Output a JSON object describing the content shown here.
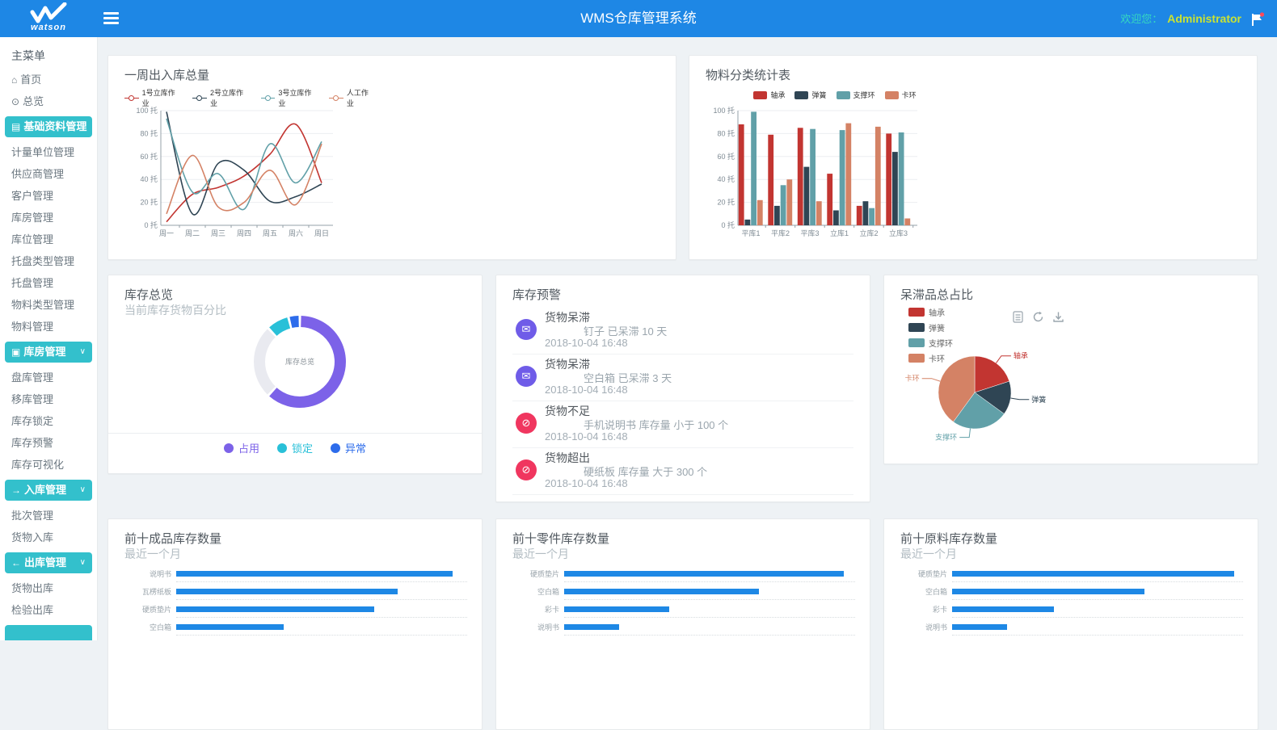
{
  "header": {
    "logo_text": "watson",
    "title": "WMS仓库管理系统",
    "welcome_label": "欢迎您：",
    "username": "Administrator"
  },
  "sidebar": {
    "menu_label": "主菜单",
    "items": [
      {
        "label": "首页",
        "icon": "home"
      },
      {
        "label": "总览",
        "icon": "overview"
      },
      {
        "label": "基础资料管理",
        "icon": "folder",
        "active": true
      },
      {
        "label": "计量单位管理"
      },
      {
        "label": "供应商管理"
      },
      {
        "label": "客户管理"
      },
      {
        "label": "库房管理"
      },
      {
        "label": "库位管理"
      },
      {
        "label": "托盘类型管理"
      },
      {
        "label": "托盘管理"
      },
      {
        "label": "物料类型管理"
      },
      {
        "label": "物料管理"
      },
      {
        "label": "库房管理",
        "icon": "warehouse",
        "active": true,
        "chevron": true
      },
      {
        "label": "盘库管理"
      },
      {
        "label": "移库管理"
      },
      {
        "label": "库存锁定"
      },
      {
        "label": "库存预警"
      },
      {
        "label": "库存可视化"
      },
      {
        "label": "入库管理",
        "icon": "arrow-right",
        "active": true,
        "chevron": true
      },
      {
        "label": "批次管理"
      },
      {
        "label": "货物入库"
      },
      {
        "label": "出库管理",
        "icon": "arrow-left",
        "active": true,
        "chevron": true
      },
      {
        "label": "货物出库"
      },
      {
        "label": "检验出库"
      }
    ]
  },
  "alerts": {
    "title": "库存预警",
    "items": [
      {
        "severity": "info",
        "icon": "envelope-icon",
        "title": "货物呆滞",
        "message": "钉子 已呆滞 10 天",
        "time": "2018-10-04 16:48"
      },
      {
        "severity": "info",
        "icon": "envelope-icon",
        "title": "货物呆滞",
        "message": "空白箱 已呆滞 3 天",
        "time": "2018-10-04 16:48"
      },
      {
        "severity": "danger",
        "icon": "block-icon",
        "title": "货物不足",
        "message": "手机说明书 库存量 小于 100 个",
        "time": "2018-10-04 16:48"
      },
      {
        "severity": "danger",
        "icon": "block-icon",
        "title": "货物超出",
        "message": "硬纸板 库存量 大于 300 个",
        "time": "2018-10-04 16:48"
      }
    ]
  },
  "chart_data": [
    {
      "type": "line",
      "title": "一周出入库总量",
      "categories": [
        "周一",
        "周二",
        "周三",
        "周四",
        "周五",
        "周六",
        "周日"
      ],
      "series": [
        {
          "name": "1号立库作业",
          "color": "#c23531",
          "values": [
            3,
            27,
            33,
            43,
            62,
            88,
            37
          ]
        },
        {
          "name": "2号立库作业",
          "color": "#2f4554",
          "values": [
            99,
            10,
            54,
            48,
            21,
            25,
            36
          ]
        },
        {
          "name": "3号立库作业",
          "color": "#61a0a8",
          "values": [
            93,
            29,
            45,
            14,
            71,
            37,
            73
          ]
        },
        {
          "name": "人工作业",
          "color": "#d48265",
          "values": [
            10,
            61,
            16,
            20,
            48,
            18,
            71
          ]
        }
      ],
      "y_ticks": [
        "0 托",
        "20 托",
        "40 托",
        "60 托",
        "80 托",
        "100 托"
      ],
      "ylim": [
        0,
        100
      ],
      "smooth": true,
      "legend_position": "top",
      "grid": true
    },
    {
      "type": "bar",
      "title": "物料分类统计表",
      "categories": [
        "平库1",
        "平库2",
        "平库3",
        "立库1",
        "立库2",
        "立库3"
      ],
      "series": [
        {
          "name": "轴承",
          "color": "#c23531",
          "values": [
            88,
            79,
            85,
            45,
            17,
            80
          ]
        },
        {
          "name": "弹簧",
          "color": "#2f4554",
          "values": [
            5,
            17,
            51,
            13,
            21,
            64
          ]
        },
        {
          "name": "支撑环",
          "color": "#61a0a8",
          "values": [
            99,
            35,
            84,
            83,
            15,
            81
          ]
        },
        {
          "name": "卡环",
          "color": "#d48265",
          "values": [
            22,
            40,
            21,
            89,
            86,
            6
          ]
        }
      ],
      "y_ticks": [
        "0 托",
        "20 托",
        "40 托",
        "60 托",
        "80 托",
        "100 托"
      ],
      "ylim": [
        0,
        100
      ],
      "legend_position": "top",
      "grid": true
    },
    {
      "type": "donut",
      "title": "库存总览",
      "subtitle": "当前库存货物百分比",
      "center_label": "库存总览",
      "segments": [
        {
          "label": "占用",
          "value": 62,
          "color": "#7c62e8"
        },
        {
          "label": "",
          "value": 26,
          "color": "#e9eaf0"
        },
        {
          "label": "锁定",
          "value": 8,
          "color": "#29c0d8"
        },
        {
          "label": "异常",
          "value": 4,
          "color": "#2d6ceb"
        }
      ],
      "legend": [
        {
          "label": "占用",
          "color": "#7c62e8"
        },
        {
          "label": "锁定",
          "color": "#29c0d8"
        },
        {
          "label": "异常",
          "color": "#2d6ceb"
        }
      ]
    },
    {
      "type": "pie",
      "title": "呆滞品总占比",
      "slices": [
        {
          "label": "轴承",
          "value": 20,
          "color": "#c23531"
        },
        {
          "label": "弹簧",
          "value": 15,
          "color": "#2f4554"
        },
        {
          "label": "支撑环",
          "value": 25,
          "color": "#61a0a8"
        },
        {
          "label": "卡环",
          "value": 40,
          "color": "#d48265"
        }
      ],
      "toolbox": [
        "data-view",
        "refresh",
        "download"
      ]
    },
    {
      "type": "hbar",
      "title": "前十成品库存数量",
      "subtitle": "最近一个月",
      "categories": [
        "说明书",
        "瓦楞纸板",
        "硬质垫片",
        "空白箱"
      ],
      "values_pct": [
        95,
        76,
        68,
        37
      ],
      "color": "#1e88e5"
    },
    {
      "type": "hbar",
      "title": "前十零件库存数量",
      "subtitle": "最近一个月",
      "categories": [
        "硬质垫片",
        "空白箱",
        "彩卡",
        "说明书"
      ],
      "values_pct": [
        96,
        67,
        36,
        19
      ],
      "color": "#1e88e5"
    },
    {
      "type": "hbar",
      "title": "前十原料库存数量",
      "subtitle": "最近一个月",
      "categories": [
        "硬质垫片",
        "空白箱",
        "彩卡",
        "说明书"
      ],
      "values_pct": [
        97,
        66,
        35,
        19
      ],
      "color": "#1e88e5"
    }
  ],
  "colors": {
    "header_blue": "#1e87e5",
    "sidebar_active_cyan": "#33c0cc",
    "welcome_teal": "#35d9c0",
    "username_yellow": "#c9e234",
    "alert_info_purple": "#6f5ce8",
    "alert_danger_pink": "#f0365f",
    "hbar_blue": "#1e88e5",
    "series_palette": [
      "#c23531",
      "#2f4554",
      "#61a0a8",
      "#d48265"
    ]
  }
}
